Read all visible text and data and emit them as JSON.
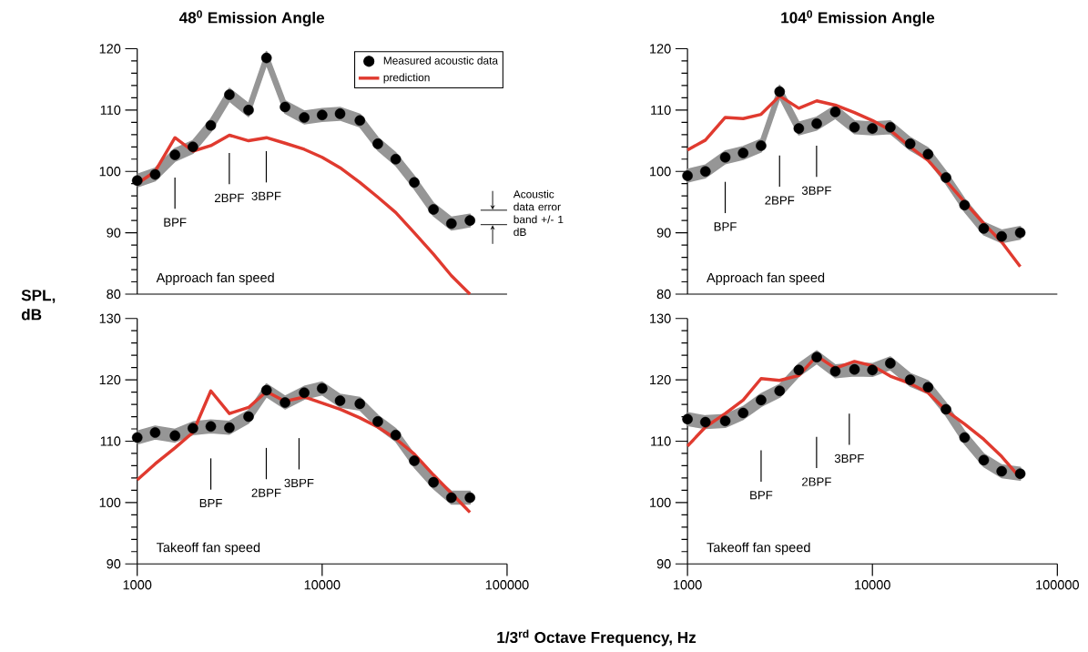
{
  "chart_data": [
    {
      "type": "line",
      "title": "48$^{0}$ Emission Angle",
      "ylabel": "SPL, dB",
      "log": "x",
      "xlim": [
        1000,
        100000
      ],
      "ylim": [
        80,
        120
      ],
      "yticks": [
        80,
        90,
        100,
        110,
        120
      ],
      "tick_labels": "y",
      "legend": "top right",
      "x": [
        1000,
        1250,
        1600,
        2000,
        2500,
        3150,
        4000,
        5000,
        6300,
        8000,
        10000,
        12500,
        16000,
        20000,
        25000,
        31500,
        40000,
        50000,
        63000
      ],
      "series": [
        {
          "name": "Measured acoustic data",
          "type": "scatter",
          "marker": "circle",
          "color": "#000000",
          "values": [
            98.5,
            99.5,
            102.7,
            104,
            107.5,
            112.5,
            110,
            118.5,
            110.5,
            108.8,
            109.2,
            109.4,
            108.3,
            104.5,
            102,
            98.2,
            93.8,
            91.5,
            92
          ],
          "lower": [
            97.5,
            98.5,
            101.7,
            103,
            106.5,
            111.5,
            109,
            117.5,
            109.5,
            107.8,
            108.2,
            108.4,
            107.3,
            103.5,
            101,
            97.2,
            92.8,
            90.5,
            91
          ],
          "upper": [
            99.5,
            100.5,
            103.7,
            105,
            108.5,
            113.5,
            111,
            119.5,
            111.5,
            109.8,
            110.2,
            110.4,
            109.3,
            105.5,
            103,
            99.2,
            94.8,
            92.5,
            93
          ]
        },
        {
          "name": "prediction",
          "type": "line",
          "line_style": "solid",
          "color": "#e03a2f",
          "values": [
            98,
            100,
            105.5,
            103.3,
            104.2,
            105.9,
            105,
            105.5,
            104.6,
            103.6,
            102.3,
            100.6,
            98.2,
            95.8,
            93.3,
            90,
            86.5,
            83,
            80
          ]
        }
      ],
      "annotations": [
        "Approach fan speed",
        "Acoustic data error band +/- 1 dB",
        "BPF",
        "2BPF",
        "3BPF"
      ]
    },
    {
      "type": "line",
      "title": "104$^{0}$ Emission Angle",
      "log": "x",
      "xlim": [
        1000,
        100000
      ],
      "ylim": [
        80,
        120
      ],
      "yticks": [
        80,
        90,
        100,
        110,
        120
      ],
      "tick_labels": "y",
      "x": [
        1000,
        1250,
        1600,
        2000,
        2500,
        3150,
        4000,
        5000,
        6300,
        8000,
        10000,
        12500,
        16000,
        20000,
        25000,
        31500,
        40000,
        50000,
        63000
      ],
      "series": [
        {
          "type": "scatter",
          "marker": "circle",
          "color": "#000000",
          "values": [
            99.3,
            100,
            102.3,
            103,
            104.2,
            113,
            107,
            107.8,
            109.7,
            107.2,
            107,
            107.2,
            104.5,
            102.8,
            99,
            94.5,
            90.7,
            89.4,
            90
          ],
          "lower": [
            98.3,
            99,
            101.3,
            102,
            103.2,
            112,
            106,
            106.8,
            108.7,
            106.2,
            106,
            106.2,
            103.5,
            101.8,
            98,
            93.5,
            89.7,
            88.4,
            89
          ],
          "upper": [
            100.3,
            101,
            103.3,
            104,
            105.2,
            114,
            108,
            108.8,
            110.7,
            108.2,
            108,
            108.2,
            105.5,
            103.8,
            100,
            95.5,
            91.7,
            90.4,
            91
          ]
        },
        {
          "type": "line",
          "line_style": "solid",
          "color": "#e03a2f",
          "values": [
            103.5,
            105.1,
            108.8,
            108.6,
            109.3,
            112.3,
            110.3,
            111.5,
            110.8,
            109.6,
            108.3,
            106.7,
            104,
            101.8,
            98.5,
            95,
            91.5,
            88.5,
            84.5
          ]
        }
      ],
      "annotations": [
        "Approach fan speed",
        "BPF",
        "2BPF",
        "3BPF"
      ]
    },
    {
      "type": "line",
      "xlabel": "1/3$^{rd}$ Octave Frequency, Hz",
      "log": "x",
      "xlim": [
        1000,
        100000
      ],
      "ylim": [
        90,
        130
      ],
      "xticks": [
        1000,
        10000,
        100000
      ],
      "yticks": [
        90,
        100,
        110,
        120,
        130
      ],
      "x": [
        1000,
        1250,
        1600,
        2000,
        2500,
        3150,
        4000,
        5000,
        6300,
        8000,
        10000,
        12500,
        16000,
        20000,
        25000,
        31500,
        40000,
        50000,
        63000
      ],
      "series": [
        {
          "type": "scatter",
          "marker": "circle",
          "color": "#000000",
          "values": [
            110.6,
            111.4,
            110.9,
            112.1,
            112.4,
            112.2,
            114,
            118.3,
            116.3,
            117.9,
            118.6,
            116.6,
            116.1,
            113.2,
            111,
            106.8,
            103.3,
            100.8,
            100.8
          ],
          "lower": [
            109.6,
            110.4,
            109.9,
            111.1,
            111.4,
            111.2,
            113,
            117.3,
            115.3,
            116.9,
            117.6,
            115.6,
            115.1,
            112.2,
            110,
            105.8,
            102.3,
            99.8,
            99.8
          ],
          "upper": [
            111.6,
            112.4,
            111.9,
            113.1,
            113.4,
            113.2,
            115,
            119.3,
            117.3,
            118.9,
            119.6,
            117.6,
            117.1,
            114.2,
            112,
            107.8,
            104.3,
            101.8,
            101.8
          ]
        },
        {
          "type": "line",
          "line_style": "solid",
          "color": "#e03a2f",
          "values": [
            103.7,
            106.3,
            108.9,
            111.4,
            118.2,
            114.5,
            115.5,
            118.1,
            116.5,
            117.2,
            116.2,
            115.2,
            113.8,
            112.3,
            110.4,
            107.9,
            104.5,
            101.5,
            98.4
          ]
        }
      ],
      "annotations": [
        "Takeoff fan speed",
        "BPF",
        "2BPF",
        "3BPF"
      ]
    },
    {
      "type": "line",
      "log": "x",
      "xlim": [
        1000,
        100000
      ],
      "ylim": [
        90,
        130
      ],
      "xticks": [
        1000,
        10000,
        100000
      ],
      "yticks": [
        90,
        100,
        110,
        120,
        130
      ],
      "x": [
        1000,
        1250,
        1600,
        2000,
        2500,
        3150,
        4000,
        5000,
        6300,
        8000,
        10000,
        12500,
        16000,
        20000,
        25000,
        31500,
        40000,
        50000,
        63000
      ],
      "series": [
        {
          "type": "scatter",
          "marker": "circle",
          "color": "#000000",
          "values": [
            113.6,
            113.1,
            113.3,
            114.6,
            116.7,
            118.2,
            121.6,
            123.7,
            121.4,
            121.7,
            121.6,
            122.7,
            120,
            118.8,
            115.2,
            110.6,
            106.9,
            105.1,
            104.7
          ],
          "lower": [
            112.6,
            112.1,
            112.3,
            113.6,
            115.7,
            117.2,
            120.6,
            122.7,
            120.4,
            120.7,
            120.6,
            121.7,
            119,
            117.8,
            114.2,
            109.6,
            105.9,
            104.1,
            103.7
          ],
          "upper": [
            114.6,
            114.1,
            114.3,
            115.6,
            117.7,
            119.2,
            122.6,
            124.7,
            122.4,
            122.7,
            122.6,
            123.7,
            121,
            119.8,
            116.2,
            111.6,
            107.9,
            106.1,
            105.7
          ]
        },
        {
          "type": "line",
          "line_style": "solid",
          "color": "#e03a2f",
          "values": [
            109.2,
            112.3,
            114.5,
            116.7,
            120.2,
            119.9,
            120.7,
            123.9,
            121.9,
            123,
            122.3,
            120.6,
            119.4,
            117.9,
            115,
            112.8,
            110.3,
            107.5,
            104
          ]
        }
      ],
      "annotations": [
        "Takeoff fan speed",
        "BPF",
        "2BPF",
        "3BPF"
      ]
    }
  ]
}
